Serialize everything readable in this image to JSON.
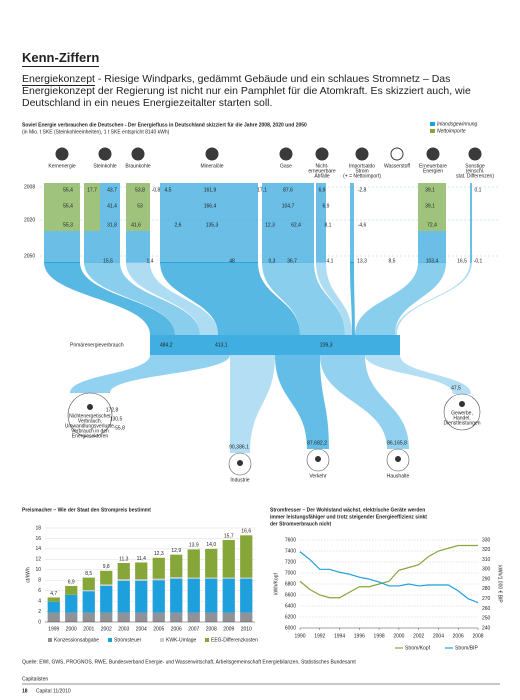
{
  "header": {
    "title": "Kenn-Ziffern",
    "kicker": "Energiekonzept",
    "text": "- Riesige Windparks, gedämmt Gebäude und ein schlaues Stromnetz – Das Energiekonzept der Regierung ist nicht nur ein Pamphlet für die Atomkraft. Es skizziert auch, wie Deutschland in ein neues Energiezeitalter starten soll."
  },
  "sankey": {
    "title": "Soviel Energie verbrauchen die Deutschen - Der Energiefluss in Deutschland skizziert für die Jahre 2008, 2020 und 2050",
    "subtitle": "(in Mio. t SKE (Steinkohleeinheiten), 1 t SKE entspricht 8140 kWh)",
    "legend": [
      "Inlandsgewinnung",
      "Nettoimporte"
    ],
    "sources": [
      [
        "Kernenergie"
      ],
      [
        "Steinkohle"
      ],
      [
        "Braunkohle"
      ],
      [
        "Mineralöle"
      ],
      [
        "Gase"
      ],
      [
        "Nicht-",
        "erneuerbare",
        "Abfälle"
      ],
      [
        "Importsaldo",
        "Strom",
        "(+ = Nettoimport)"
      ],
      [
        "Wasserstoff"
      ],
      [
        "Erneuerbare",
        "Energien"
      ],
      [
        "Sonstige",
        "(einschl.",
        "stat. Differenzen)"
      ]
    ],
    "years": [
      "2008",
      "2020",
      "2050"
    ],
    "rows": [
      [
        "55,4",
        "17,7",
        "43,7",
        "53,8",
        "-0,8",
        "4,5",
        "161,9",
        "17,1",
        "87,6",
        "6,9",
        "-2,8",
        "39,1",
        "0,1"
      ],
      [
        "55,4",
        "41,4",
        "53",
        "166,4",
        "104,7",
        "6,9",
        "39,1"
      ],
      [
        "55,3",
        "31,8",
        "41,6",
        "2,6",
        "135,3",
        "12,3",
        "62,4",
        "8,1",
        "-4,6",
        "72,4"
      ],
      [
        "15,5",
        "1,4",
        "48",
        "0,3",
        "36,7",
        "4,1",
        "13,3",
        "8,5",
        "103,4",
        "16,5",
        "-0,1"
      ]
    ],
    "primary": {
      "label": "Primärenergieverbrauch",
      "values": [
        "484,2",
        "413,1",
        "239,3"
      ]
    },
    "sinks": [
      {
        "label": [
          "Nichtenergetischer",
          "Verbrauch,",
          "Umwandlungsverluste,",
          "Verbrauch in den",
          "Energiesektoren"
        ],
        "values": [
          "172,8",
          "130,5",
          "55,8"
        ]
      },
      {
        "label": [
          "Industrie"
        ],
        "values": [
          "90,3",
          "86,1"
        ]
      },
      {
        "label": [
          "Verkehr"
        ],
        "values": [
          "87,6",
          "82,2"
        ]
      },
      {
        "label": [
          "Haushalte"
        ],
        "values": [
          "86,1",
          "65,8"
        ]
      },
      {
        "label": [
          "Gewerbe,",
          "Handel,",
          "Dienstleistungen"
        ],
        "values": [
          "47,5"
        ]
      }
    ]
  },
  "chart_data": [
    {
      "type": "bar",
      "stacked": true,
      "title": "Preismacher – Wie der Staat den Strompreis bestimmt",
      "ylabel": "ct/kWh",
      "categories": [
        "1999",
        "2000",
        "2001",
        "2002",
        "2003",
        "2004",
        "2005",
        "2006",
        "2007",
        "2008",
        "2009",
        "2010"
      ],
      "series": [
        {
          "name": "Konzessionsabgabe",
          "color": "#8f9296",
          "values": [
            1.8,
            1.8,
            1.8,
            1.8,
            1.8,
            1.8,
            1.8,
            1.8,
            1.8,
            1.8,
            1.8,
            1.8
          ]
        },
        {
          "name": "Stromsteuer",
          "color": "#1ea0dc",
          "values": [
            2.1,
            3.4,
            4.1,
            5.1,
            6.1,
            6.1,
            6.2,
            6.5,
            6.5,
            6.5,
            6.5,
            6.5
          ]
        },
        {
          "name": "KWK-Umlage",
          "color": "#c9cbcd",
          "values": [
            0,
            0,
            0.2,
            0.3,
            0.3,
            0.3,
            0.3,
            0.3,
            0.2,
            0.2,
            0.2,
            0.2
          ]
        },
        {
          "name": "EEG-Differenzkosten",
          "color": "#86a63a",
          "values": [
            0.8,
            1.7,
            2.4,
            2.6,
            3.1,
            3.2,
            4.0,
            4.3,
            5.4,
            5.5,
            7.2,
            8.1
          ]
        }
      ],
      "total_labels": [
        "4,7",
        "6,9",
        "8,5",
        "9,8",
        "11,3",
        "11,4",
        "12,3",
        "12,9",
        "13,9",
        "14,0",
        "15,7",
        "16,6"
      ],
      "ylim": [
        0,
        18
      ],
      "yticks": [
        0,
        2,
        4,
        6,
        8,
        10,
        12,
        14,
        16,
        18
      ],
      "grid": true,
      "legend": "bottom"
    },
    {
      "type": "line",
      "title": [
        "Stromfresser – Der Wohlstand wächst, elektrische Geräte werden",
        "immer leistungsfähiger und trotz steigender Energieeffizienz sinkt",
        "der Stromverbrauch nicht"
      ],
      "ylabel": "kWh/Kopf",
      "y2label": "kWh/1.000 € BIP",
      "x": [
        1990,
        1991,
        1992,
        1993,
        1994,
        1995,
        1996,
        1997,
        1998,
        1999,
        2000,
        2001,
        2002,
        2003,
        2004,
        2005,
        2006,
        2007,
        2008
      ],
      "xlim": [
        1990,
        2008
      ],
      "xticks": [
        1990,
        1992,
        1994,
        1996,
        1998,
        2000,
        2002,
        2004,
        2006,
        2008
      ],
      "ylim": [
        6000,
        7600
      ],
      "yticks": [
        6000,
        6200,
        6400,
        6600,
        6800,
        7000,
        7200,
        7400,
        7600
      ],
      "y2lim": [
        240,
        330
      ],
      "y2ticks": [
        240,
        250,
        260,
        270,
        280,
        290,
        300,
        310,
        320,
        330
      ],
      "series": [
        {
          "name": "Strom/Kopf",
          "color": "#86a63a",
          "values": [
            6850,
            6700,
            6600,
            6550,
            6550,
            6650,
            6750,
            6750,
            6800,
            6850,
            7050,
            7100,
            7150,
            7300,
            7400,
            7450,
            7500,
            7500,
            7500
          ]
        },
        {
          "name": "Strom/BIP",
          "color": "#1ea0dc",
          "axis": "y2",
          "values": [
            318,
            310,
            300,
            300,
            297,
            295,
            292,
            290,
            287,
            283,
            283,
            285,
            283,
            284,
            284,
            284,
            278,
            270,
            266
          ]
        }
      ],
      "grid": true,
      "legend": "bottom"
    }
  ],
  "footer": {
    "source": "Quelle: EWI, GWS, PROGNOS, RWE, Bundesverband Energie- und Wasserwirtschaft, Arbeitsgemeinschaft Energiebilanzen, Statistisches Bundesamt",
    "section": "Capitalisten",
    "page": "18",
    "issue": "Capital 11/2010"
  }
}
